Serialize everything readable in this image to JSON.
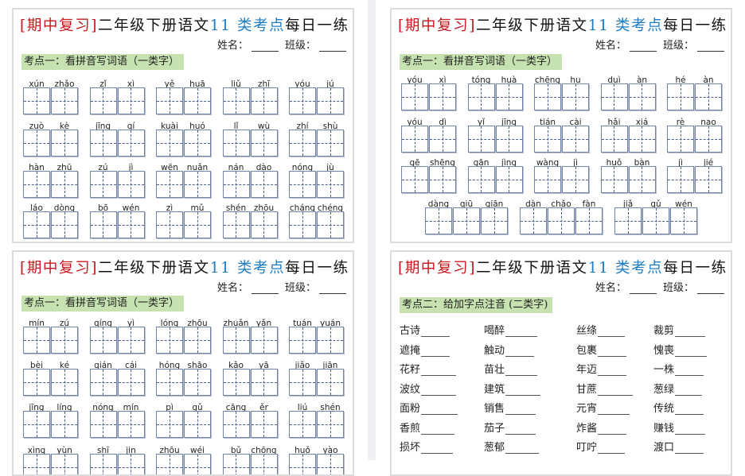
{
  "header": {
    "title_bracket": "[期中复习]",
    "title_main": "二年级下册语文",
    "title_highlight": "11 类考点",
    "title_tail": "每日一练",
    "name_label": "姓名：",
    "class_label": "班级："
  },
  "colors": {
    "red": "#c8161d",
    "blue": "#1d7cc4",
    "label_bg": "#c6e2b0",
    "box_border": "#6f82a8"
  },
  "panels": [
    {
      "id": "top-left",
      "section_label": "考点一：看拼音写词语（一类字）",
      "rows": [
        [
          [
            "xún",
            "zhǎo"
          ],
          [
            "zǐ",
            "xì"
          ],
          [
            "yě",
            "huā"
          ],
          [
            "liǔ",
            "zhī"
          ],
          [
            "yóu",
            "jú"
          ]
        ],
        [
          [
            "zuò",
            "kè"
          ],
          [
            "jīng",
            "qí"
          ],
          [
            "kuài",
            "huó"
          ],
          [
            "lǐ",
            "wù"
          ],
          [
            "zhí",
            "shù"
          ]
        ],
        [
          [
            "hàn",
            "zhū"
          ],
          [
            "zú",
            "jì"
          ],
          [
            "wēn",
            "nuǎn"
          ],
          [
            "nán",
            "dào"
          ],
          [
            "nóng",
            "jù"
          ]
        ],
        [
          [
            "láo",
            "dòng"
          ],
          [
            "bō",
            "wén"
          ],
          [
            "zì",
            "mǔ"
          ],
          [
            "shén",
            "zhōu"
          ],
          [
            "cháng",
            "chéng"
          ]
        ]
      ]
    },
    {
      "id": "top-right",
      "section_label": "考点一：看拼音写词语（一类字）",
      "rows": [
        [
          [
            "yóu",
            "xì"
          ],
          [
            "tóng",
            "huà"
          ],
          [
            "chēng",
            "hu"
          ],
          [
            "duì",
            "àn"
          ],
          [
            "hé",
            "àn"
          ]
        ],
        [
          [
            "yóu",
            "dì"
          ],
          [
            "yǐ",
            "jīng"
          ],
          [
            "tián",
            "cài"
          ],
          [
            "hǎi",
            "xiá"
          ],
          [
            "rè",
            "nao"
          ]
        ],
        [
          [
            "gē",
            "shēng"
          ],
          [
            "gān",
            "jìng"
          ],
          [
            "wàng",
            "jì"
          ],
          [
            "huǒ",
            "bàn"
          ],
          [
            "jì",
            "jié"
          ]
        ],
        [
          [
            "dàng",
            "qiū",
            "qiān"
          ],
          [
            "dàn",
            "chǎo",
            "fàn"
          ],
          [
            "jiǎ",
            "gǔ",
            "wén"
          ]
        ]
      ]
    },
    {
      "id": "bottom-left",
      "section_label": "考点一：看拼音写词语（一类字）",
      "rows": [
        [
          [
            "mín",
            "zú"
          ],
          [
            "qíng",
            "yì"
          ],
          [
            "lóng",
            "zhōu"
          ],
          [
            "zhuǎn",
            "yǎn"
          ],
          [
            "tuán",
            "yuán"
          ]
        ],
        [
          [
            "bèi",
            "ké"
          ],
          [
            "qián",
            "cái"
          ],
          [
            "hóng",
            "shāo"
          ],
          [
            "kǎo",
            "yā"
          ],
          [
            "jiǎo",
            "jiān"
          ]
        ],
        [
          [
            "jīng",
            "líng"
          ],
          [
            "nóng",
            "mín"
          ],
          [
            "pì",
            "gǔ"
          ],
          [
            "cāng",
            "ěr"
          ],
          [
            "liú",
            "shén"
          ]
        ],
        [
          [
            "xìng",
            "yùn"
          ],
          [
            "shī",
            "jin"
          ],
          [
            "zhōu",
            "wéi"
          ],
          [
            "bǔ",
            "chōng"
          ],
          [
            "huǒ",
            "yào"
          ]
        ]
      ]
    },
    {
      "id": "bottom-right",
      "section_label": "考点二：给加字点注音 (二类字)",
      "items": [
        [
          "古诗",
          "喝醉",
          "丝绦",
          "裁剪"
        ],
        [
          "遮掩",
          "触动",
          "包裹",
          "愧喪"
        ],
        [
          "花籽",
          "苗壮",
          "年迈",
          "一株"
        ],
        [
          "波纹",
          "建筑",
          "甘蔗",
          "葱绿"
        ],
        [
          "面粉",
          "销售",
          "元宵",
          "传统"
        ],
        [
          "香煎",
          "茄子",
          "炸酱",
          "赚钱"
        ],
        [
          "损坏",
          "葱郁",
          "叮咛",
          "渡口"
        ]
      ]
    }
  ]
}
